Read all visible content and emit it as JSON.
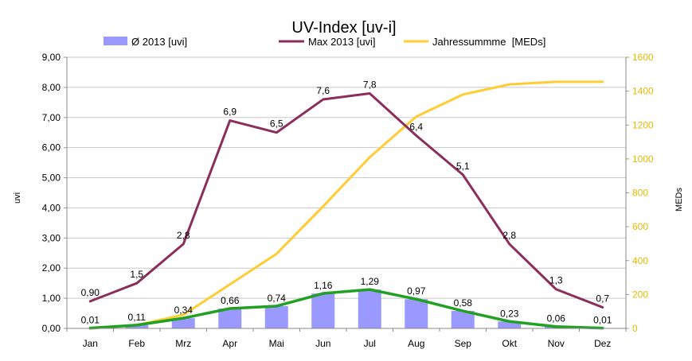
{
  "chart_data": {
    "type": "bar",
    "title": "UV-Index [uv-i]",
    "ylabel": "uvi",
    "y2label": "MEDs",
    "categories": [
      "Jan",
      "Feb",
      "Mrz",
      "Apr",
      "Mai",
      "Jun",
      "Jul",
      "Aug",
      "Sep",
      "Okt",
      "Nov",
      "Dez"
    ],
    "ylim": [
      0,
      9
    ],
    "y2lim": [
      0,
      1600
    ],
    "yticks": [
      "0,00",
      "1,00",
      "2,00",
      "3,00",
      "4,00",
      "5,00",
      "6,00",
      "7,00",
      "8,00",
      "9,00"
    ],
    "y2ticks": [
      "0",
      "200",
      "400",
      "600",
      "800",
      "1000",
      "1200",
      "1400",
      "1600"
    ],
    "grid": true,
    "legend_position": "top",
    "series": [
      {
        "name": "Ø 2013 [uvi]",
        "type": "bar",
        "axis": "left",
        "color": "#9999ff",
        "values": [
          0.01,
          0.11,
          0.34,
          0.66,
          0.74,
          1.16,
          1.29,
          0.97,
          0.58,
          0.23,
          0.06,
          0.01
        ],
        "labels": [
          "0,01",
          "0,11",
          "0,34",
          "0,66",
          "0,74",
          "1,16",
          "1,29",
          "0,97",
          "0,58",
          "0,23",
          "0,06",
          "0,01"
        ]
      },
      {
        "name": "Max 2013 [uvi]",
        "type": "line",
        "axis": "left",
        "color": "#8b2e5c",
        "values": [
          0.9,
          1.5,
          2.8,
          6.9,
          6.5,
          7.6,
          7.8,
          6.4,
          5.1,
          2.8,
          1.3,
          0.7
        ],
        "labels": [
          "0,90",
          "1,5",
          "2,8",
          "6,9",
          "6,5",
          "7,6",
          "7,8",
          "6,4",
          "5,1",
          "2,8",
          "1,3",
          "0,7"
        ]
      },
      {
        "name": "Jahressummme  [MEDs]",
        "type": "line",
        "axis": "right",
        "color": "#ffcc33",
        "values": [
          0,
          20,
          80,
          260,
          440,
          720,
          1010,
          1250,
          1380,
          1440,
          1455,
          1455
        ]
      },
      {
        "type": "line",
        "axis": "left",
        "color": "#22a022",
        "values": [
          0.01,
          0.11,
          0.34,
          0.66,
          0.74,
          1.16,
          1.29,
          0.97,
          0.58,
          0.23,
          0.06,
          0.01
        ]
      }
    ]
  }
}
